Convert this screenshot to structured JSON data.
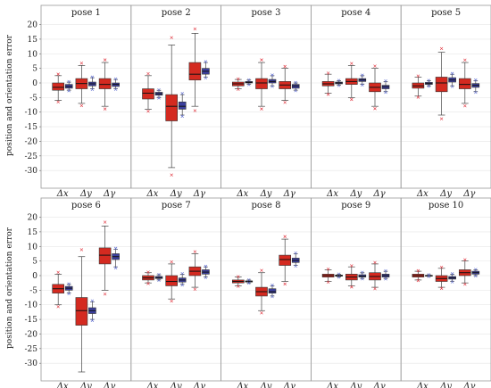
{
  "chart_data": {
    "type": "box",
    "ylabel": "position and orientation error",
    "yticks": [
      20,
      15,
      10,
      5,
      0,
      -5,
      -10,
      -15,
      -20,
      -25,
      -30
    ],
    "ylim": [
      -33,
      22
    ],
    "colors": {
      "red": "#d42a20",
      "blue": "#3b3f9e",
      "outlier_red": "#e0303a",
      "outlier_blue": "#5a6ad0"
    },
    "grid": true,
    "panels": [
      {
        "label": "pose 1",
        "xlabels": [
          "Δx",
          "Δy",
          "Δγ"
        ],
        "boxes": [
          {
            "s": "red",
            "wl": -6,
            "q1": -2.5,
            "med": -1.5,
            "q3": 0,
            "wh": 2.5
          },
          {
            "s": "blue",
            "wl": -2.5,
            "q1": -1.8,
            "med": -1.2,
            "q3": -0.5,
            "wh": 0.3
          },
          {
            "s": "red",
            "wl": -7,
            "q1": -2,
            "med": -0.2,
            "q3": 1.5,
            "wh": 6
          },
          {
            "s": "blue",
            "wl": -2,
            "q1": -1,
            "med": -0.3,
            "q3": 0.3,
            "wh": 1.8
          },
          {
            "s": "red",
            "wl": -8,
            "q1": -2,
            "med": -0.5,
            "q3": 1.5,
            "wh": 7
          },
          {
            "s": "blue",
            "wl": -2,
            "q1": -1.2,
            "med": -0.5,
            "q3": 0,
            "wh": 1.2
          }
        ]
      },
      {
        "label": "pose 2",
        "xlabels": [
          "Δx",
          "Δy",
          "Δγ"
        ],
        "boxes": [
          {
            "s": "red",
            "wl": -9,
            "q1": -5.5,
            "med": -3.5,
            "q3": -2,
            "wh": 2.5
          },
          {
            "s": "blue",
            "wl": -5,
            "q1": -4.2,
            "med": -3.7,
            "q3": -3.2,
            "wh": -2.5
          },
          {
            "s": "red",
            "wl": -29,
            "q1": -13,
            "med": -8,
            "q3": -4,
            "wh": 13
          },
          {
            "s": "blue",
            "wl": -11,
            "q1": -9,
            "med": -8,
            "q3": -6.5,
            "wh": -4
          },
          {
            "s": "red",
            "wl": -8,
            "q1": 1,
            "med": 3,
            "q3": 7,
            "wh": 17
          },
          {
            "s": "blue",
            "wl": 2,
            "q1": 3,
            "med": 4,
            "q3": 5,
            "wh": 7
          }
        ]
      },
      {
        "label": "pose 3",
        "xlabels": [
          "Δx",
          "Δy",
          "Δγ"
        ],
        "boxes": [
          {
            "s": "red",
            "wl": -2,
            "q1": -1,
            "med": -0.3,
            "q3": 0.3,
            "wh": 1.2
          },
          {
            "s": "blue",
            "wl": -0.5,
            "q1": 0,
            "med": 0.2,
            "q3": 0.5,
            "wh": 1
          },
          {
            "s": "red",
            "wl": -8,
            "q1": -2,
            "med": 0,
            "q3": 1.5,
            "wh": 7
          },
          {
            "s": "blue",
            "wl": -1,
            "q1": 0,
            "med": 0.5,
            "q3": 1.2,
            "wh": 2.5
          },
          {
            "s": "red",
            "wl": -6,
            "q1": -2,
            "med": -0.7,
            "q3": 0.5,
            "wh": 5
          },
          {
            "s": "blue",
            "wl": -2.5,
            "q1": -1.8,
            "med": -1,
            "q3": -0.5,
            "wh": 0
          }
        ]
      },
      {
        "label": "pose 4",
        "xlabels": [
          "Δx",
          "Δy",
          "Δγ"
        ],
        "boxes": [
          {
            "s": "red",
            "wl": -3.5,
            "q1": -1,
            "med": -0.3,
            "q3": 0.5,
            "wh": 3
          },
          {
            "s": "blue",
            "wl": -0.8,
            "q1": -0.3,
            "med": 0,
            "q3": 0.3,
            "wh": 0.8
          },
          {
            "s": "red",
            "wl": -5,
            "q1": -0.5,
            "med": 0.5,
            "q3": 1.5,
            "wh": 6
          },
          {
            "s": "blue",
            "wl": -0.5,
            "q1": 0.5,
            "med": 1,
            "q3": 1.5,
            "wh": 2.5
          },
          {
            "s": "red",
            "wl": -8,
            "q1": -3,
            "med": -1.5,
            "q3": 0,
            "wh": 5
          },
          {
            "s": "blue",
            "wl": -3,
            "q1": -2,
            "med": -1.3,
            "q3": -0.8,
            "wh": 0.5
          }
        ]
      },
      {
        "label": "pose 5",
        "xlabels": [
          "Δx",
          "Δy",
          "Δγ"
        ],
        "boxes": [
          {
            "s": "red",
            "wl": -4.5,
            "q1": -1.8,
            "med": -1,
            "q3": 0,
            "wh": 2
          },
          {
            "s": "blue",
            "wl": -1,
            "q1": -0.5,
            "med": -0.2,
            "q3": 0.2,
            "wh": 0.8
          },
          {
            "s": "red",
            "wl": -11,
            "q1": -3,
            "med": 0,
            "q3": 2,
            "wh": 10.5
          },
          {
            "s": "blue",
            "wl": -1,
            "q1": 0.3,
            "med": 1,
            "q3": 1.8,
            "wh": 3
          },
          {
            "s": "red",
            "wl": -7,
            "q1": -2,
            "med": -0.5,
            "q3": 1.5,
            "wh": 7
          },
          {
            "s": "blue",
            "wl": -3,
            "q1": -1.5,
            "med": -0.8,
            "q3": -0.2,
            "wh": 0.8
          }
        ]
      },
      {
        "label": "pose 6",
        "xlabels": [
          "Δx",
          "Δy",
          "Δγ"
        ],
        "boxes": [
          {
            "s": "red",
            "wl": -10,
            "q1": -6,
            "med": -4.5,
            "q3": -3,
            "wh": 0.5
          },
          {
            "s": "blue",
            "wl": -6,
            "q1": -5,
            "med": -4.3,
            "q3": -3.7,
            "wh": -3
          },
          {
            "s": "red",
            "wl": -33,
            "q1": -17,
            "med": -12,
            "q3": -7.5,
            "wh": 6.5
          },
          {
            "s": "blue",
            "wl": -15,
            "q1": -13,
            "med": -12,
            "q3": -11,
            "wh": -9
          },
          {
            "s": "red",
            "wl": -5,
            "q1": 4,
            "med": 7,
            "q3": 9.5,
            "wh": 17
          },
          {
            "s": "blue",
            "wl": 3,
            "q1": 5.5,
            "med": 6.5,
            "q3": 7.5,
            "wh": 9
          }
        ]
      },
      {
        "label": "pose 7",
        "xlabels": [
          "Δx",
          "Δy",
          "Δγ"
        ],
        "boxes": [
          {
            "s": "red",
            "wl": -2.5,
            "q1": -1.5,
            "med": -0.8,
            "q3": 0,
            "wh": 1
          },
          {
            "s": "blue",
            "wl": -1.5,
            "q1": -1,
            "med": -0.7,
            "q3": -0.3,
            "wh": 0.3
          },
          {
            "s": "red",
            "wl": -8,
            "q1": -3.5,
            "med": -2,
            "q3": 0,
            "wh": 4
          },
          {
            "s": "blue",
            "wl": -3,
            "q1": -2.2,
            "med": -1.5,
            "q3": -0.8,
            "wh": 0.5
          },
          {
            "s": "red",
            "wl": -4,
            "q1": 0,
            "med": 1.5,
            "q3": 3,
            "wh": 7.5
          },
          {
            "s": "blue",
            "wl": -0.5,
            "q1": 0.5,
            "med": 1.2,
            "q3": 2,
            "wh": 3
          }
        ]
      },
      {
        "label": "pose 8",
        "xlabels": [
          "Δx",
          "Δy",
          "Δγ"
        ],
        "boxes": [
          {
            "s": "red",
            "wl": -3.5,
            "q1": -2.5,
            "med": -2,
            "q3": -1.5,
            "wh": -0.5
          },
          {
            "s": "blue",
            "wl": -2.5,
            "q1": -2.2,
            "med": -2,
            "q3": -1.8,
            "wh": -1.5
          },
          {
            "s": "red",
            "wl": -12,
            "q1": -7,
            "med": -5.5,
            "q3": -4,
            "wh": 1
          },
          {
            "s": "blue",
            "wl": -7,
            "q1": -6,
            "med": -5.5,
            "q3": -4.5,
            "wh": -3.5
          },
          {
            "s": "red",
            "wl": -2,
            "q1": 3.5,
            "med": 5.5,
            "q3": 7,
            "wh": 12.5
          },
          {
            "s": "blue",
            "wl": 3.5,
            "q1": 4.5,
            "med": 5.2,
            "q3": 6,
            "wh": 7.5
          }
        ]
      },
      {
        "label": "pose 9",
        "xlabels": [
          "Δx",
          "Δy",
          "Δγ"
        ],
        "boxes": [
          {
            "s": "red",
            "wl": -2,
            "q1": -0.5,
            "med": 0,
            "q3": 0.5,
            "wh": 2
          },
          {
            "s": "blue",
            "wl": -0.5,
            "q1": -0.2,
            "med": 0,
            "q3": 0.2,
            "wh": 0.5
          },
          {
            "s": "red",
            "wl": -3.5,
            "q1": -1.5,
            "med": -0.5,
            "q3": 0.5,
            "wh": 3
          },
          {
            "s": "blue",
            "wl": -1,
            "q1": -0.5,
            "med": -0.2,
            "q3": 0.3,
            "wh": 1
          },
          {
            "s": "red",
            "wl": -4,
            "q1": -1.5,
            "med": -0.3,
            "q3": 1,
            "wh": 4
          },
          {
            "s": "blue",
            "wl": -1,
            "q1": -0.5,
            "med": 0,
            "q3": 0.5,
            "wh": 1.5
          }
        ]
      },
      {
        "label": "pose 10",
        "xlabels": [
          "Δx",
          "Δy",
          "Δγ"
        ],
        "boxes": [
          {
            "s": "red",
            "wl": -1.5,
            "q1": -0.5,
            "med": 0,
            "q3": 0.5,
            "wh": 1.5
          },
          {
            "s": "blue",
            "wl": -0.3,
            "q1": -0.1,
            "med": 0,
            "q3": 0.1,
            "wh": 0.3
          },
          {
            "s": "red",
            "wl": -4,
            "q1": -2,
            "med": -1,
            "q3": 0,
            "wh": 2.5
          },
          {
            "s": "blue",
            "wl": -2,
            "q1": -1.2,
            "med": -0.8,
            "q3": -0.3,
            "wh": 0.5
          },
          {
            "s": "red",
            "wl": -2.5,
            "q1": 0,
            "med": 1,
            "q3": 2,
            "wh": 5
          },
          {
            "s": "blue",
            "wl": 0,
            "q1": 0.5,
            "med": 1,
            "q3": 1.5,
            "wh": 2
          }
        ]
      }
    ]
  }
}
